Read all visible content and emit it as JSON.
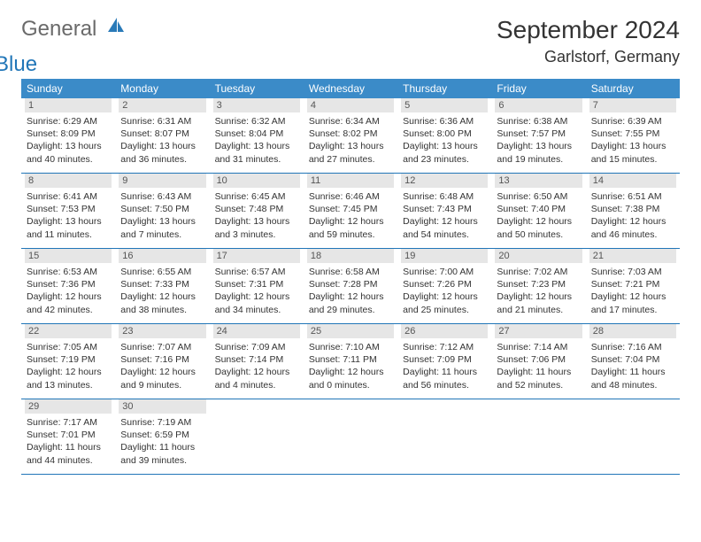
{
  "logo": {
    "text1": "General",
    "text2": "Blue"
  },
  "title": "September 2024",
  "location": "Garlstorf, Germany",
  "header_bg": "#3b8bc8",
  "divider_color": "#2176b8",
  "daynum_bg": "#e6e6e6",
  "text_color": "#333333",
  "day_headers": [
    "Sunday",
    "Monday",
    "Tuesday",
    "Wednesday",
    "Thursday",
    "Friday",
    "Saturday"
  ],
  "weeks": [
    [
      {
        "num": "1",
        "sunrise": "Sunrise: 6:29 AM",
        "sunset": "Sunset: 8:09 PM",
        "daylight": "Daylight: 13 hours and 40 minutes."
      },
      {
        "num": "2",
        "sunrise": "Sunrise: 6:31 AM",
        "sunset": "Sunset: 8:07 PM",
        "daylight": "Daylight: 13 hours and 36 minutes."
      },
      {
        "num": "3",
        "sunrise": "Sunrise: 6:32 AM",
        "sunset": "Sunset: 8:04 PM",
        "daylight": "Daylight: 13 hours and 31 minutes."
      },
      {
        "num": "4",
        "sunrise": "Sunrise: 6:34 AM",
        "sunset": "Sunset: 8:02 PM",
        "daylight": "Daylight: 13 hours and 27 minutes."
      },
      {
        "num": "5",
        "sunrise": "Sunrise: 6:36 AM",
        "sunset": "Sunset: 8:00 PM",
        "daylight": "Daylight: 13 hours and 23 minutes."
      },
      {
        "num": "6",
        "sunrise": "Sunrise: 6:38 AM",
        "sunset": "Sunset: 7:57 PM",
        "daylight": "Daylight: 13 hours and 19 minutes."
      },
      {
        "num": "7",
        "sunrise": "Sunrise: 6:39 AM",
        "sunset": "Sunset: 7:55 PM",
        "daylight": "Daylight: 13 hours and 15 minutes."
      }
    ],
    [
      {
        "num": "8",
        "sunrise": "Sunrise: 6:41 AM",
        "sunset": "Sunset: 7:53 PM",
        "daylight": "Daylight: 13 hours and 11 minutes."
      },
      {
        "num": "9",
        "sunrise": "Sunrise: 6:43 AM",
        "sunset": "Sunset: 7:50 PM",
        "daylight": "Daylight: 13 hours and 7 minutes."
      },
      {
        "num": "10",
        "sunrise": "Sunrise: 6:45 AM",
        "sunset": "Sunset: 7:48 PM",
        "daylight": "Daylight: 13 hours and 3 minutes."
      },
      {
        "num": "11",
        "sunrise": "Sunrise: 6:46 AM",
        "sunset": "Sunset: 7:45 PM",
        "daylight": "Daylight: 12 hours and 59 minutes."
      },
      {
        "num": "12",
        "sunrise": "Sunrise: 6:48 AM",
        "sunset": "Sunset: 7:43 PM",
        "daylight": "Daylight: 12 hours and 54 minutes."
      },
      {
        "num": "13",
        "sunrise": "Sunrise: 6:50 AM",
        "sunset": "Sunset: 7:40 PM",
        "daylight": "Daylight: 12 hours and 50 minutes."
      },
      {
        "num": "14",
        "sunrise": "Sunrise: 6:51 AM",
        "sunset": "Sunset: 7:38 PM",
        "daylight": "Daylight: 12 hours and 46 minutes."
      }
    ],
    [
      {
        "num": "15",
        "sunrise": "Sunrise: 6:53 AM",
        "sunset": "Sunset: 7:36 PM",
        "daylight": "Daylight: 12 hours and 42 minutes."
      },
      {
        "num": "16",
        "sunrise": "Sunrise: 6:55 AM",
        "sunset": "Sunset: 7:33 PM",
        "daylight": "Daylight: 12 hours and 38 minutes."
      },
      {
        "num": "17",
        "sunrise": "Sunrise: 6:57 AM",
        "sunset": "Sunset: 7:31 PM",
        "daylight": "Daylight: 12 hours and 34 minutes."
      },
      {
        "num": "18",
        "sunrise": "Sunrise: 6:58 AM",
        "sunset": "Sunset: 7:28 PM",
        "daylight": "Daylight: 12 hours and 29 minutes."
      },
      {
        "num": "19",
        "sunrise": "Sunrise: 7:00 AM",
        "sunset": "Sunset: 7:26 PM",
        "daylight": "Daylight: 12 hours and 25 minutes."
      },
      {
        "num": "20",
        "sunrise": "Sunrise: 7:02 AM",
        "sunset": "Sunset: 7:23 PM",
        "daylight": "Daylight: 12 hours and 21 minutes."
      },
      {
        "num": "21",
        "sunrise": "Sunrise: 7:03 AM",
        "sunset": "Sunset: 7:21 PM",
        "daylight": "Daylight: 12 hours and 17 minutes."
      }
    ],
    [
      {
        "num": "22",
        "sunrise": "Sunrise: 7:05 AM",
        "sunset": "Sunset: 7:19 PM",
        "daylight": "Daylight: 12 hours and 13 minutes."
      },
      {
        "num": "23",
        "sunrise": "Sunrise: 7:07 AM",
        "sunset": "Sunset: 7:16 PM",
        "daylight": "Daylight: 12 hours and 9 minutes."
      },
      {
        "num": "24",
        "sunrise": "Sunrise: 7:09 AM",
        "sunset": "Sunset: 7:14 PM",
        "daylight": "Daylight: 12 hours and 4 minutes."
      },
      {
        "num": "25",
        "sunrise": "Sunrise: 7:10 AM",
        "sunset": "Sunset: 7:11 PM",
        "daylight": "Daylight: 12 hours and 0 minutes."
      },
      {
        "num": "26",
        "sunrise": "Sunrise: 7:12 AM",
        "sunset": "Sunset: 7:09 PM",
        "daylight": "Daylight: 11 hours and 56 minutes."
      },
      {
        "num": "27",
        "sunrise": "Sunrise: 7:14 AM",
        "sunset": "Sunset: 7:06 PM",
        "daylight": "Daylight: 11 hours and 52 minutes."
      },
      {
        "num": "28",
        "sunrise": "Sunrise: 7:16 AM",
        "sunset": "Sunset: 7:04 PM",
        "daylight": "Daylight: 11 hours and 48 minutes."
      }
    ],
    [
      {
        "num": "29",
        "sunrise": "Sunrise: 7:17 AM",
        "sunset": "Sunset: 7:01 PM",
        "daylight": "Daylight: 11 hours and 44 minutes."
      },
      {
        "num": "30",
        "sunrise": "Sunrise: 7:19 AM",
        "sunset": "Sunset: 6:59 PM",
        "daylight": "Daylight: 11 hours and 39 minutes."
      },
      null,
      null,
      null,
      null,
      null
    ]
  ]
}
